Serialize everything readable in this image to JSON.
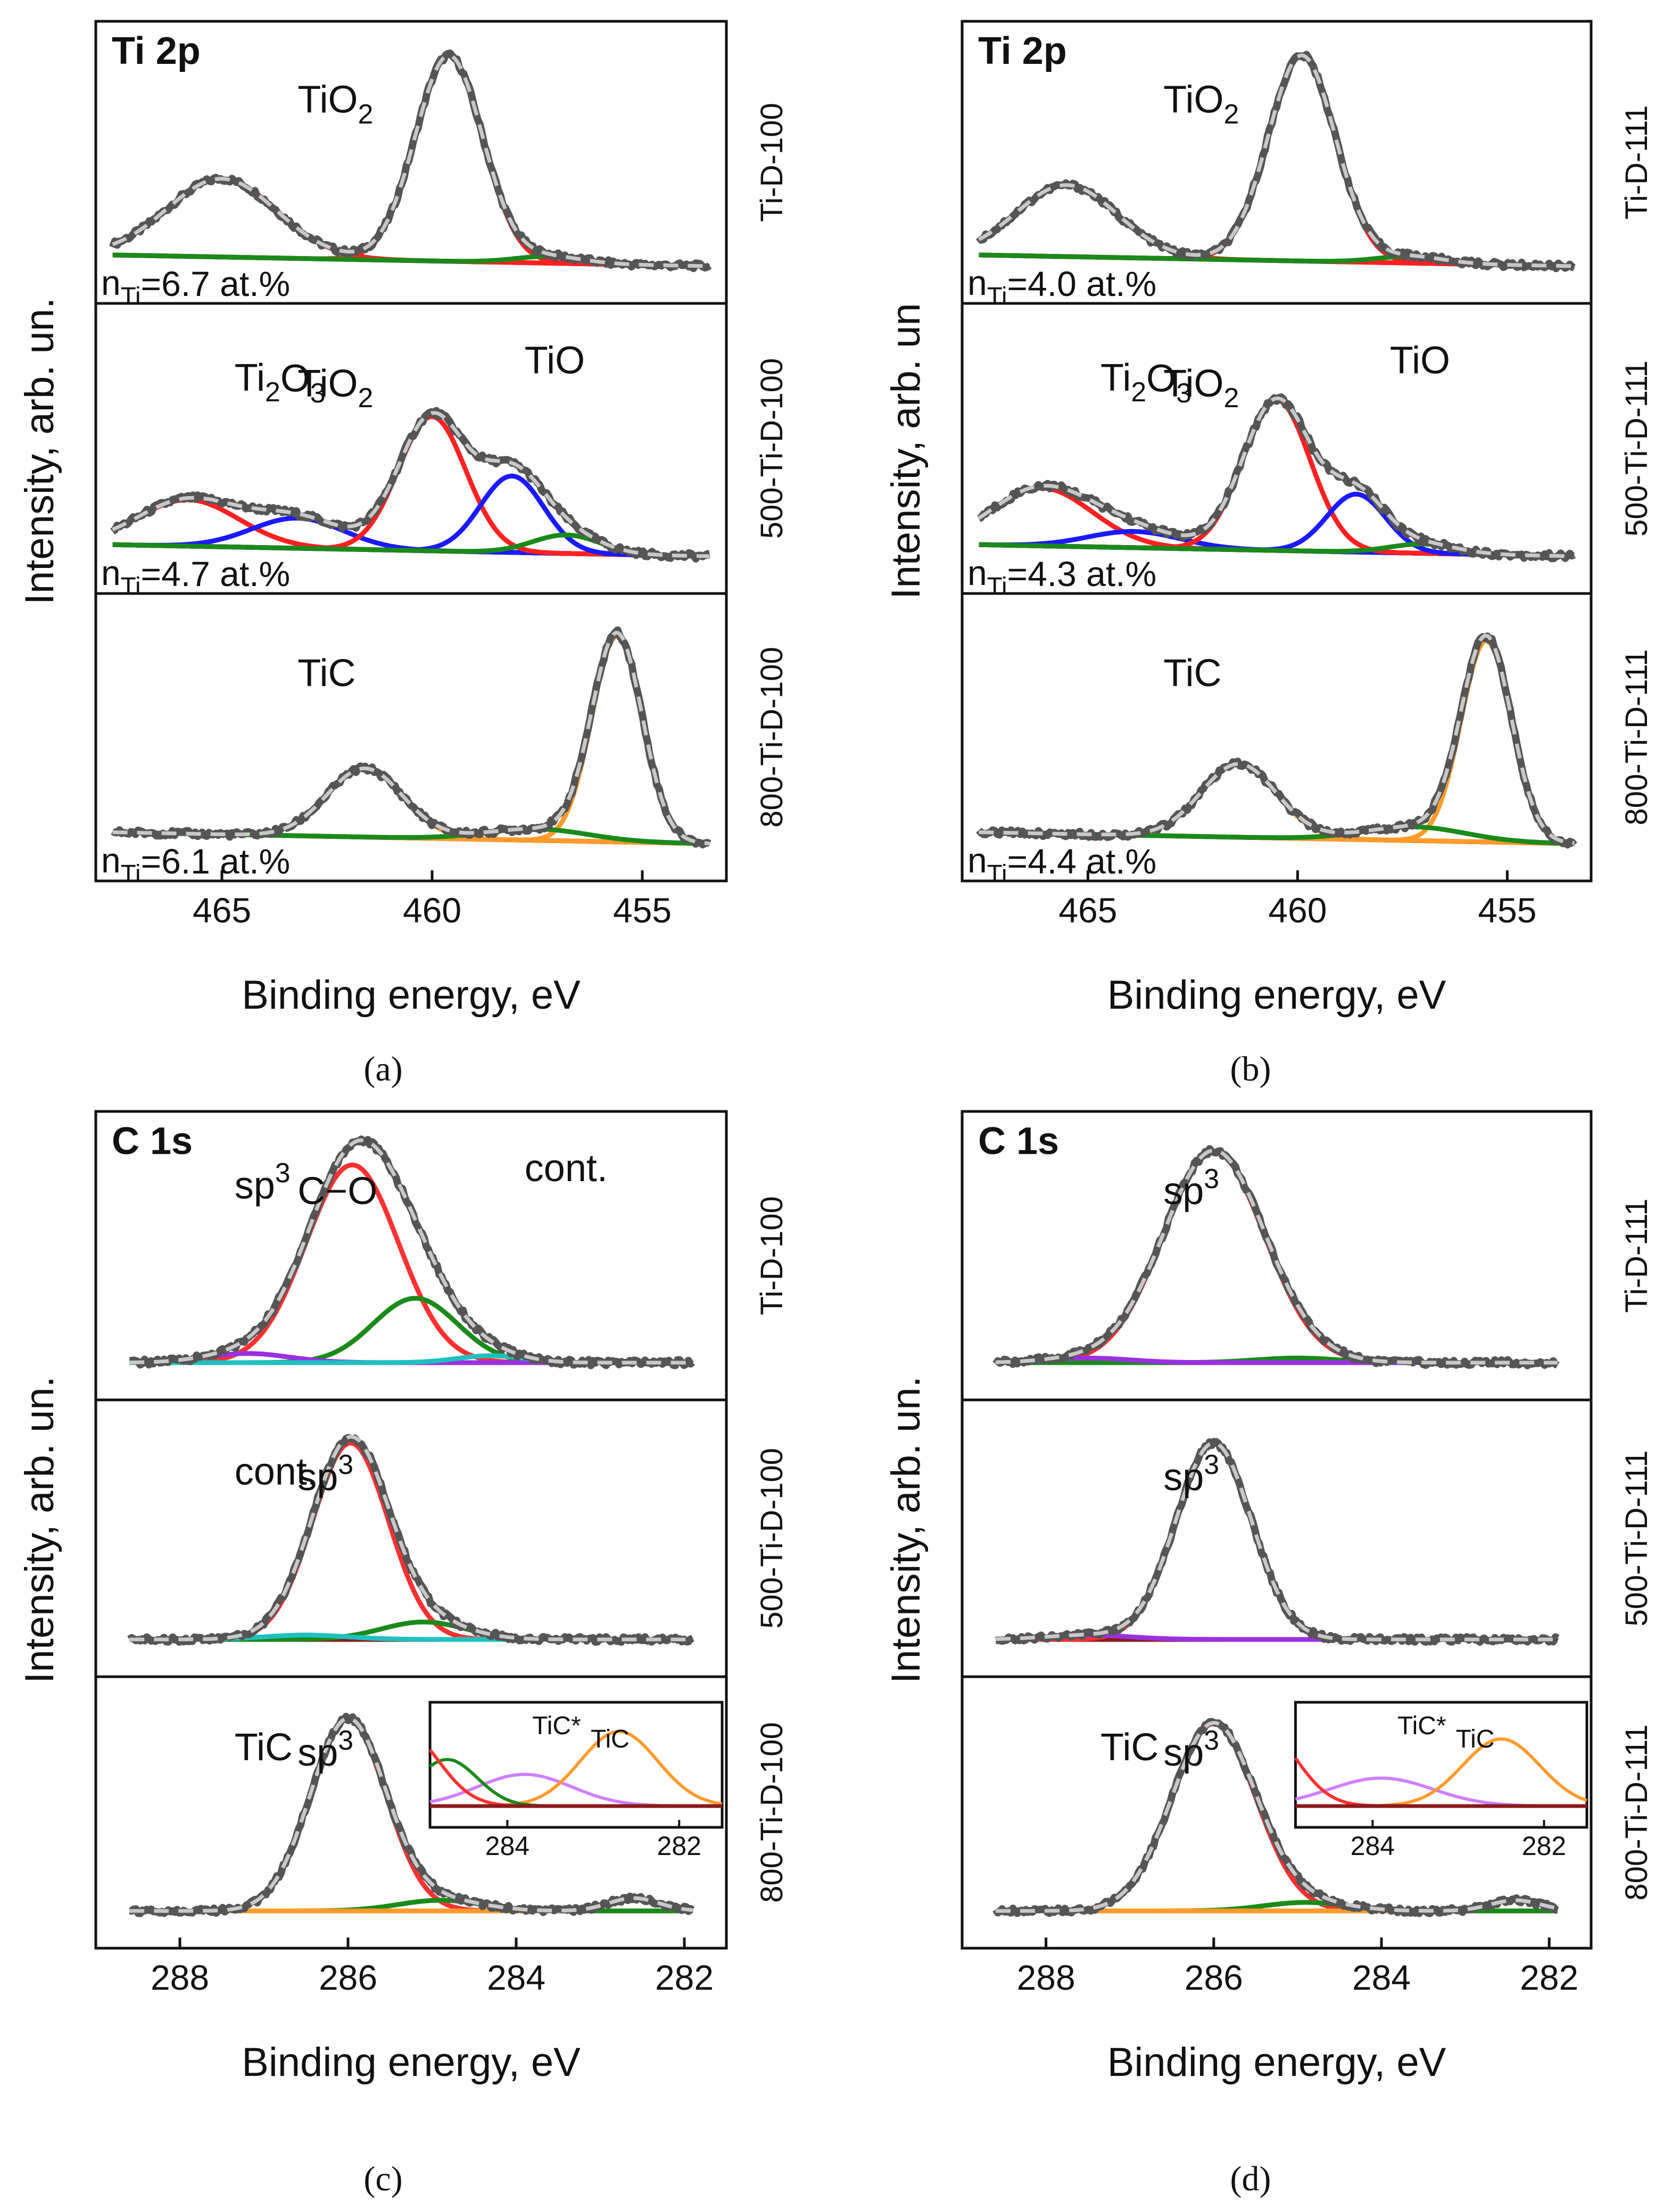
{
  "figure": {
    "captions": [
      "(a)",
      "(b)",
      "(c)",
      "(d)"
    ],
    "colors": {
      "exp": "#555555",
      "envelope": "#c8c8c8",
      "background": "#8b1a1a",
      "tio2": "#ff2020",
      "ti2o3": "#1a1aff",
      "tio": "#1a8a1a",
      "tic": "#ff9a2a",
      "sp3": "#ff3030",
      "cont": "#1a8a1a",
      "co": "#9a30e0",
      "ticstar": "#cf7fff",
      "cyan": "#20c0c0",
      "olive": "#9a9a20"
    }
  },
  "chart_data": [
    {
      "id": "a",
      "type": "line",
      "core_level": "Ti 2p",
      "xlabel": "Binding energy, eV",
      "ylabel": "Intensity, arb. un.",
      "xlim": [
        468,
        453
      ],
      "xticks": [
        465,
        460,
        455
      ],
      "subplots": [
        {
          "sample": "Ti-D-100",
          "n_label": "=6.7 at.%",
          "components": [
            {
              "name": "TiO2 2p1/2",
              "center": 465.0,
              "amp": 0.35,
              "width": 1.3
            },
            {
              "name": "TiO2 2p3/2",
              "center": 459.6,
              "amp": 0.92,
              "width": 0.8
            },
            {
              "name": "TiO",
              "center": 457.2,
              "amp": 0.03,
              "width": 0.8
            }
          ],
          "annotations": [
            {
              "text": "TiO",
              "sub": "2"
            }
          ]
        },
        {
          "sample": "500-Ti-D-100",
          "n_label": "=4.7 at.%",
          "components": [
            {
              "name": "TiO2",
              "center": 465.8,
              "amp": 0.2,
              "width": 1.2
            },
            {
              "name": "Ti2O3",
              "center": 463.2,
              "amp": 0.13,
              "width": 1.1
            },
            {
              "name": "TiO2",
              "center": 460.0,
              "amp": 0.58,
              "width": 0.8
            },
            {
              "name": "Ti2O3",
              "center": 458.1,
              "amp": 0.33,
              "width": 0.75
            },
            {
              "name": "TiO",
              "center": 456.8,
              "amp": 0.08,
              "width": 0.8
            }
          ],
          "annotations": [
            {
              "text": "TiO",
              "sub": "2"
            },
            {
              "text": "Ti",
              "sub": "2",
              "text2": "O",
              "sub2": "3"
            },
            {
              "text": "TiO"
            }
          ]
        },
        {
          "sample": "800-Ti-D-100",
          "n_label": "=6.1 at.%",
          "components": [
            {
              "name": "TiC 2p1/2",
              "center": 461.6,
              "amp": 0.3,
              "width": 0.9
            },
            {
              "name": "TiC 2p3/2",
              "center": 455.6,
              "amp": 0.9,
              "width": 0.6
            },
            {
              "name": "sat",
              "center": 457.5,
              "amp": 0.05,
              "width": 1.2
            }
          ],
          "annotations": [
            {
              "text": "TiC"
            }
          ]
        }
      ]
    },
    {
      "id": "b",
      "type": "line",
      "core_level": "Ti 2p",
      "xlabel": "Binding energy, eV",
      "ylabel": "Intensity, arb. un",
      "xlim": [
        468,
        453
      ],
      "xticks": [
        465,
        460,
        455
      ],
      "subplots": [
        {
          "sample": "Ti-D-111",
          "n_label": "=4.0 at.%",
          "components": [
            {
              "name": "TiO2 2p1/2",
              "center": 465.5,
              "amp": 0.32,
              "width": 1.2
            },
            {
              "name": "TiO2 2p3/2",
              "center": 459.9,
              "amp": 0.92,
              "width": 0.8
            },
            {
              "name": "TiO",
              "center": 457.3,
              "amp": 0.03,
              "width": 0.8
            }
          ],
          "annotations": [
            {
              "text": "TiO",
              "sub": "2"
            }
          ]
        },
        {
          "sample": "500-Ti-D-111",
          "n_label": "=4.3 at.%",
          "components": [
            {
              "name": "TiO2",
              "center": 466.1,
              "amp": 0.25,
              "width": 1.2
            },
            {
              "name": "Ti2O3",
              "center": 463.9,
              "amp": 0.07,
              "width": 1.1
            },
            {
              "name": "TiO2",
              "center": 460.5,
              "amp": 0.65,
              "width": 0.8
            },
            {
              "name": "Ti2O3",
              "center": 458.6,
              "amp": 0.25,
              "width": 0.7
            },
            {
              "name": "TiO",
              "center": 457.0,
              "amp": 0.04,
              "width": 0.8
            }
          ],
          "annotations": [
            {
              "text": "TiO",
              "sub": "2"
            },
            {
              "text": "Ti",
              "sub": "2",
              "text2": "O",
              "sub2": "3"
            },
            {
              "text": "TiO"
            }
          ]
        },
        {
          "sample": "800-Ti-D-111",
          "n_label": "=4.4 at.%",
          "components": [
            {
              "name": "TiC 2p1/2",
              "center": 461.4,
              "amp": 0.32,
              "width": 0.9
            },
            {
              "name": "TiC 2p3/2",
              "center": 455.5,
              "amp": 0.88,
              "width": 0.6
            },
            {
              "name": "sat",
              "center": 457.2,
              "amp": 0.06,
              "width": 1.2
            }
          ],
          "annotations": [
            {
              "text": "TiC"
            }
          ]
        }
      ]
    },
    {
      "id": "c",
      "type": "line",
      "core_level": "C 1s",
      "xlabel": "Binding energy, eV",
      "ylabel": "Intensity, arb. un.",
      "xlim": [
        289,
        281.5
      ],
      "xticks": [
        288,
        286,
        284,
        282
      ],
      "subplots": [
        {
          "sample": "Ti-D-100",
          "components": [
            {
              "name": "sp3",
              "center": 285.95,
              "amp": 0.86,
              "width": 0.55
            },
            {
              "name": "cont.",
              "center": 285.2,
              "amp": 0.28,
              "width": 0.5
            },
            {
              "name": "C-O",
              "center": 287.2,
              "amp": 0.04,
              "width": 0.5
            },
            {
              "name": "cyan",
              "center": 284.3,
              "amp": 0.03,
              "width": 0.4
            }
          ],
          "annotations": [
            {
              "text": "C−O"
            },
            {
              "text": "sp",
              "sup": "3"
            },
            {
              "text": "cont."
            }
          ]
        },
        {
          "sample": "500-Ti-D-100",
          "components": [
            {
              "name": "sp3",
              "center": 285.97,
              "amp": 0.9,
              "width": 0.45
            },
            {
              "name": "cont.",
              "center": 285.1,
              "amp": 0.08,
              "width": 0.5
            },
            {
              "name": "cyan",
              "center": 286.5,
              "amp": 0.02,
              "width": 0.5
            }
          ],
          "annotations": [
            {
              "text": "sp",
              "sup": "3"
            },
            {
              "text": "cont."
            }
          ]
        },
        {
          "sample": "800-Ti-D-100",
          "components": [
            {
              "name": "sp3",
              "center": 286.0,
              "amp": 0.9,
              "width": 0.45
            },
            {
              "name": "cont.",
              "center": 284.9,
              "amp": 0.05,
              "width": 0.5
            },
            {
              "name": "TiC",
              "center": 282.6,
              "amp": 0.06,
              "width": 0.3
            }
          ],
          "annotations": [
            {
              "text": "sp",
              "sup": "3"
            },
            {
              "text": "TiC"
            }
          ],
          "inset": {
            "xlim": [
              284.9,
              281.5
            ],
            "xticks": [
              284,
              282
            ],
            "labels": [
              "TiC*",
              "TiC"
            ],
            "components": [
              {
                "name": "TiC*",
                "center": 283.8,
                "amp": 0.34,
                "width": 0.55
              },
              {
                "name": "TiC",
                "center": 282.7,
                "amp": 0.8,
                "width": 0.45
              },
              {
                "name": "cont.",
                "center": 284.7,
                "amp": 0.5,
                "width": 0.35
              },
              {
                "name": "sp3 tail",
                "center": 285.2,
                "amp": 0.8,
                "width": 0.4
              }
            ]
          }
        }
      ]
    },
    {
      "id": "d",
      "type": "line",
      "core_level": "C 1s",
      "xlabel": "Binding energy, eV",
      "ylabel": "Intensity, arb. un.",
      "xlim": [
        289,
        281.5
      ],
      "xticks": [
        288,
        286,
        284,
        282
      ],
      "subplots": [
        {
          "sample": "Ti-D-111",
          "components": [
            {
              "name": "sp3",
              "center": 286.0,
              "amp": 0.92,
              "width": 0.6
            },
            {
              "name": "cont.",
              "center": 285.0,
              "amp": 0.02,
              "width": 0.5
            },
            {
              "name": "C-O",
              "center": 287.5,
              "amp": 0.02,
              "width": 0.5
            }
          ],
          "annotations": [
            {
              "text": "sp",
              "sup": "3"
            }
          ]
        },
        {
          "sample": "500-Ti-D-111",
          "components": [
            {
              "name": "sp3",
              "center": 286.0,
              "amp": 0.9,
              "width": 0.45
            },
            {
              "name": "C-O",
              "center": 287.5,
              "amp": 0.02,
              "width": 0.5
            }
          ],
          "annotations": [
            {
              "text": "sp",
              "sup": "3"
            }
          ]
        },
        {
          "sample": "800-Ti-D-111",
          "components": [
            {
              "name": "sp3",
              "center": 286.0,
              "amp": 0.88,
              "width": 0.5
            },
            {
              "name": "cont.",
              "center": 284.9,
              "amp": 0.04,
              "width": 0.5
            },
            {
              "name": "TiC",
              "center": 282.4,
              "amp": 0.05,
              "width": 0.3
            }
          ],
          "annotations": [
            {
              "text": "sp",
              "sup": "3"
            },
            {
              "text": "TiC"
            }
          ],
          "inset": {
            "xlim": [
              284.9,
              281.5
            ],
            "xticks": [
              284,
              282
            ],
            "labels": [
              "TiC*",
              "TiC"
            ],
            "components": [
              {
                "name": "TiC*",
                "center": 283.9,
                "amp": 0.3,
                "width": 0.6
              },
              {
                "name": "TiC",
                "center": 282.5,
                "amp": 0.72,
                "width": 0.45
              },
              {
                "name": "sp3 tail",
                "center": 285.3,
                "amp": 0.85,
                "width": 0.4
              }
            ]
          }
        }
      ]
    }
  ]
}
